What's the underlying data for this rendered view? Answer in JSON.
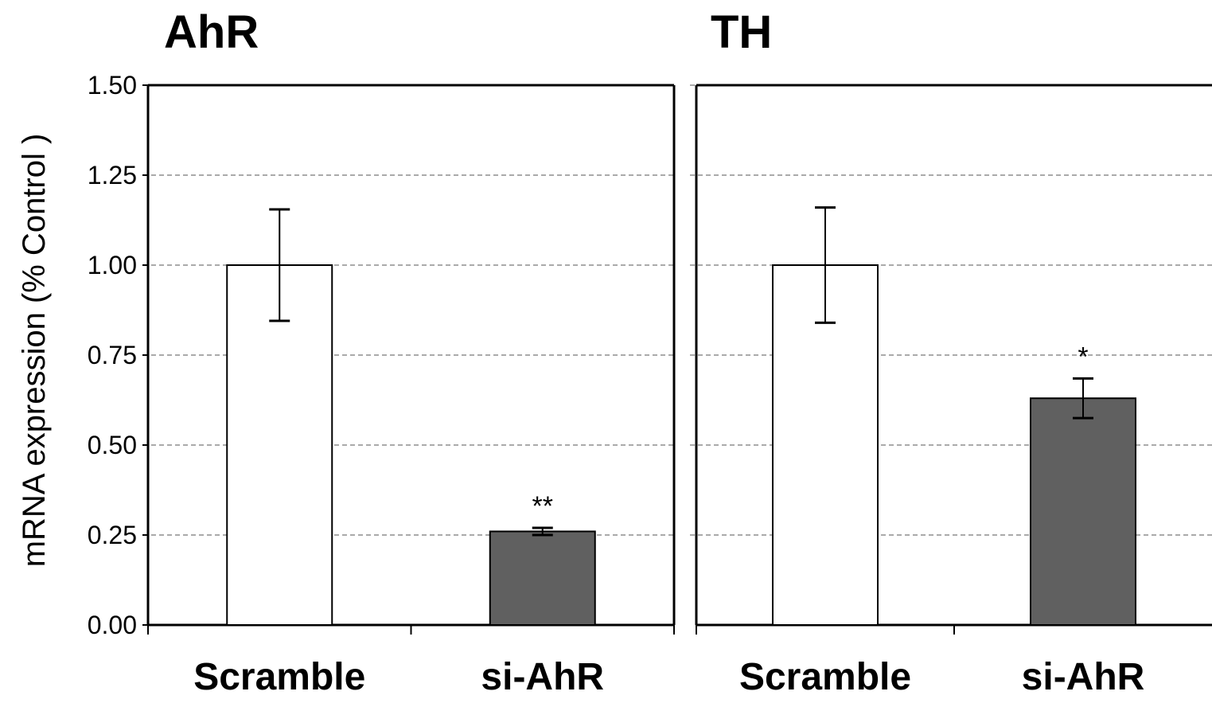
{
  "chart_data": {
    "type": "bar",
    "ylabel": "mRNA expression (% Control )",
    "ylim": [
      0,
      1.5
    ],
    "yticks": [
      "0.00",
      "0.25",
      "0.50",
      "0.75",
      "1.00",
      "1.25",
      "1.50"
    ],
    "grid": true,
    "bar_colors": [
      "#ffffff",
      "#606060"
    ],
    "panels": [
      {
        "title": "AhR",
        "categories": [
          "Scramble",
          "si-AhR"
        ],
        "values": [
          1.0,
          0.26
        ],
        "errors": [
          0.155,
          0.01
        ],
        "annotations": [
          "",
          "**"
        ]
      },
      {
        "title": "TH",
        "categories": [
          "Scramble",
          "si-AhR"
        ],
        "values": [
          1.0,
          0.63
        ],
        "errors": [
          0.16,
          0.055
        ],
        "annotations": [
          "",
          "*"
        ]
      }
    ]
  }
}
